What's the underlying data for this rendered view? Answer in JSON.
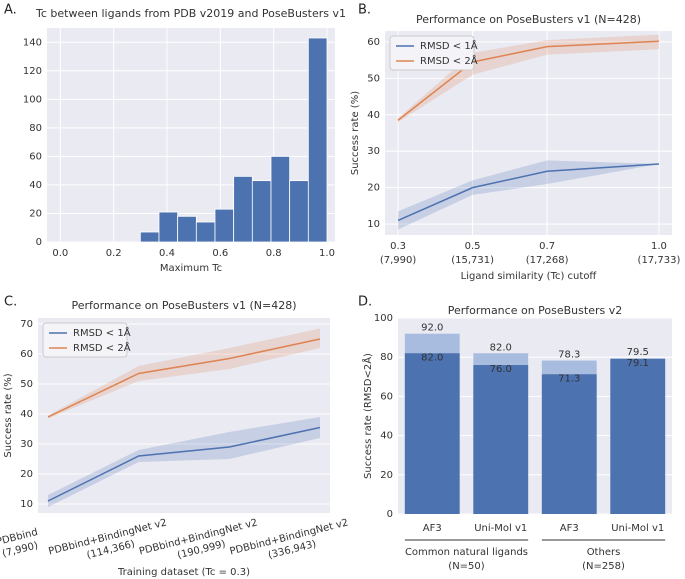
{
  "chart_data": [
    {
      "type": "histogram",
      "panel_label": "A.",
      "title": "Tc between ligands from PDB v2019 and PoseBusters v1",
      "xlabel": "Maximum Tc",
      "bins": [
        0.3,
        0.37,
        0.44,
        0.51,
        0.58,
        0.65,
        0.72,
        0.79,
        0.86,
        0.93,
        1.0
      ],
      "counts": [
        7,
        21,
        18,
        14,
        23,
        46,
        43,
        60,
        43,
        143
      ],
      "color": "#4c72b0",
      "xlim": [
        -0.05,
        1.03
      ],
      "xticks": [
        {
          "value": 0,
          "label": "0.0"
        },
        0.2,
        0.4,
        0.6,
        0.8,
        {
          "value": 1,
          "label": "1.0"
        }
      ],
      "ylim": [
        0,
        150
      ],
      "yticks": [
        0,
        20,
        40,
        60,
        80,
        100,
        120,
        140
      ],
      "grid": true
    },
    {
      "type": "line",
      "panel_label": "B.",
      "title": "Performance on PoseBusters v1 (N=428)",
      "xlabel": "Ligand similarity (Tc) cutoff",
      "ylabel": "Success rate (%)",
      "x": [
        0.3,
        0.5,
        0.7,
        1.0
      ],
      "xticks": [
        0.3,
        0.5,
        0.7,
        {
          "value": 1,
          "label": "1.0"
        }
      ],
      "xtick_sublabels": [
        "(7,990)",
        "(15,731)",
        "(17,268)",
        "(17,733)"
      ],
      "xlim": [
        0.265,
        1.035
      ],
      "ylim": [
        7,
        63
      ],
      "yticks": [
        10,
        20,
        30,
        40,
        50,
        60
      ],
      "grid": true,
      "legend": "upper left",
      "series": [
        {
          "name": "RMSD < 1Å",
          "color": "#4c72b0",
          "values": [
            11,
            20,
            24.5,
            26.5
          ],
          "lower": [
            8.5,
            18,
            21,
            26.5
          ],
          "upper": [
            13.5,
            22,
            27.5,
            26.5
          ]
        },
        {
          "name": "RMSD < 2Å",
          "color": "#dd8452",
          "values": [
            38.5,
            54.5,
            58.7,
            60.2
          ],
          "lower": [
            38,
            51,
            56.5,
            58
          ],
          "upper": [
            39,
            57,
            60.5,
            62
          ]
        }
      ]
    },
    {
      "type": "line",
      "panel_label": "C.",
      "title": "Performance on PoseBusters v1 (N=428)",
      "xlabel": "Training dataset (Tc = 0.3)",
      "ylabel": "Success rate (%)",
      "categories": [
        "PDBbind",
        "PDBbind+BindingNet v2",
        "PDBbind+BindingNet v2",
        "PDBbind+BindingNet v2"
      ],
      "category_sublabels": [
        "(7,990)",
        "(114,366)",
        "(190,999)",
        "(336,943)"
      ],
      "ylim": [
        7,
        72
      ],
      "yticks": [
        10,
        20,
        30,
        40,
        50,
        60,
        70
      ],
      "grid": true,
      "legend": "upper left",
      "series": [
        {
          "name": "RMSD < 1Å",
          "color": "#4c72b0",
          "values": [
            11,
            26,
            29,
            35.5
          ],
          "lower": [
            9,
            24,
            25,
            32
          ],
          "upper": [
            13,
            28,
            34,
            39
          ]
        },
        {
          "name": "RMSD < 2Å",
          "color": "#dd8452",
          "values": [
            39,
            53.5,
            58.5,
            65
          ],
          "lower": [
            38.5,
            51,
            55,
            62
          ],
          "upper": [
            39.5,
            56,
            62,
            68.5
          ]
        }
      ]
    },
    {
      "type": "bar",
      "panel_label": "D.",
      "title": "Performance on PoseBusters v2",
      "ylabel": "Success rate (RMSD<2Å)",
      "categories": [
        "AF3",
        "Uni-Mol v1",
        "AF3",
        "Uni-Mol v1"
      ],
      "groups": [
        {
          "label": "Common natural ligands",
          "n": "(N=50)"
        },
        {
          "label": "Others",
          "n": "(N=258)"
        }
      ],
      "ylim": [
        0,
        100
      ],
      "yticks": [
        0,
        20,
        40,
        60,
        80,
        100
      ],
      "grid": true,
      "series": [
        {
          "color": "#a8bcdf",
          "values": [
            92.0,
            82.0,
            78.3,
            79.5
          ],
          "value_labels": [
            "92.0",
            "82.0",
            "78.3",
            "79.5"
          ]
        },
        {
          "color": "#4c72b0",
          "values": [
            82.0,
            76.0,
            71.3,
            79.1
          ],
          "value_labels": [
            "82.0",
            "76.0",
            "71.3",
            "79.1"
          ]
        }
      ]
    }
  ]
}
